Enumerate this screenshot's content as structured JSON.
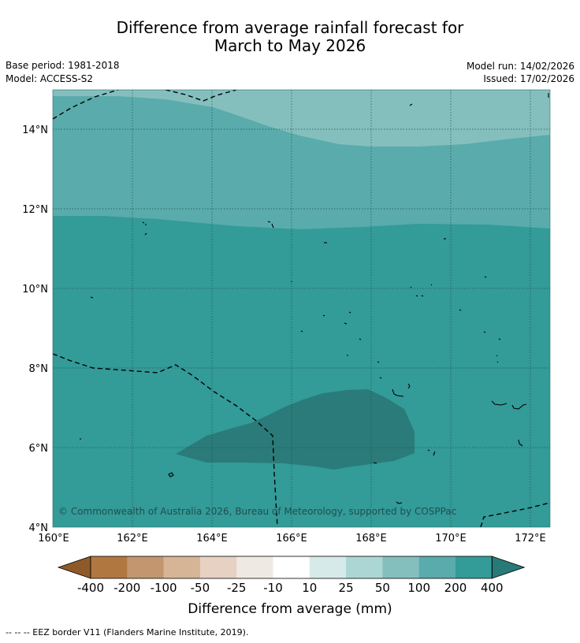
{
  "title": {
    "line1": "Difference from average rainfall forecast for",
    "line2": "March to May 2026"
  },
  "info": {
    "base_period": "Base period: 1981-2018",
    "model": "Model: ACCESS-S2",
    "model_run": "Model run: 14/02/2026",
    "issued": "Issued: 17/02/2026"
  },
  "map": {
    "lat_labels": [
      "14°N",
      "12°N",
      "10°N",
      "8°N",
      "6°N",
      "4°N"
    ],
    "lon_labels": [
      "160°E",
      "162°E",
      "164°E",
      "166°E",
      "168°E",
      "170°E",
      "172°E"
    ],
    "copyright": "© Commonwealth of Australia 2026, Bureau of Meteorology, supported by COSPPac",
    "colors": {
      "200_400": "#339b98",
      "100_200": "#5aabab",
      "50_100": "#84bfbe",
      "above_400": "#2a7b79",
      "gridline": "#1f5452",
      "coast": "#000000"
    }
  },
  "colorbar": {
    "labels": [
      "-400",
      "-200",
      "-100",
      "-50",
      "-25",
      "-10",
      "10",
      "25",
      "50",
      "100",
      "200",
      "400"
    ],
    "colors": [
      "#8f5a2a",
      "#b07840",
      "#c39670",
      "#d6b597",
      "#e7d1c2",
      "#efe9e4",
      "#ffffff",
      "#d6ebe9",
      "#acd6d4",
      "#84bfbe",
      "#5aabab",
      "#339b98",
      "#287a78"
    ],
    "title": "Difference from average (mm)"
  },
  "footnote": "--  --  -- EEZ border V11 (Flanders Marine Institute, 2019)."
}
